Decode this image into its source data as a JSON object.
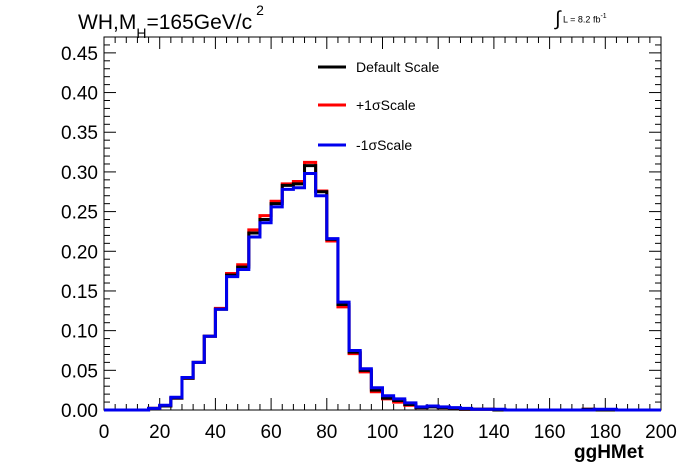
{
  "chart_data": {
    "type": "line",
    "title": {
      "main": "WH,M",
      "subscript": "H",
      "rest": "=165GeV/c",
      "superscript": "2"
    },
    "lumi": {
      "symbol": "∫",
      "text": "L = 8.2 fb",
      "superscript": "-1"
    },
    "xlabel": "ggHMet",
    "ylabel": "",
    "xlim": [
      0,
      200
    ],
    "ylim": [
      0,
      0.47
    ],
    "x_ticks": [
      "0",
      "20",
      "40",
      "60",
      "80",
      "100",
      "120",
      "140",
      "160",
      "180",
      "200"
    ],
    "y_ticks": [
      "0.00",
      "0.05",
      "0.10",
      "0.15",
      "0.20",
      "0.25",
      "0.30",
      "0.35",
      "0.40",
      "0.45"
    ],
    "bin_edges": [
      0,
      4,
      8,
      12,
      16,
      20,
      24,
      28,
      32,
      36,
      40,
      44,
      48,
      52,
      56,
      60,
      64,
      68,
      72,
      76,
      80,
      84,
      88,
      92,
      96,
      100,
      104,
      108,
      112,
      116,
      120,
      124,
      128,
      132,
      136,
      140,
      144,
      148,
      152,
      156,
      160,
      164,
      168,
      172,
      176,
      180,
      184,
      188,
      192,
      196,
      200
    ],
    "legend_placement": "top-center",
    "series": [
      {
        "name": "Default Scale",
        "color": "#000000",
        "values": [
          0,
          0,
          0,
          0,
          0.002,
          0.005,
          0.015,
          0.04,
          0.06,
          0.093,
          0.127,
          0.17,
          0.18,
          0.223,
          0.24,
          0.26,
          0.283,
          0.285,
          0.308,
          0.275,
          0.215,
          0.133,
          0.073,
          0.05,
          0.025,
          0.015,
          0.012,
          0.007,
          0.003,
          0.004,
          0.003,
          0.002,
          0.001,
          0.001,
          0.001,
          0,
          0,
          0,
          0,
          0,
          0,
          0,
          0,
          0.001,
          0,
          0,
          0,
          0,
          0,
          0
        ]
      },
      {
        "name": "+1σScale",
        "color": "#ff0000",
        "values": [
          0,
          0,
          0,
          0,
          0.002,
          0.005,
          0.015,
          0.04,
          0.06,
          0.093,
          0.128,
          0.172,
          0.183,
          0.227,
          0.245,
          0.263,
          0.285,
          0.288,
          0.312,
          0.276,
          0.213,
          0.13,
          0.071,
          0.048,
          0.023,
          0.014,
          0.01,
          0.006,
          0.003,
          0.005,
          0.003,
          0.002,
          0.001,
          0.001,
          0.001,
          0,
          0,
          0,
          0,
          0,
          0,
          0,
          0,
          0.001,
          0,
          0,
          0,
          0,
          0,
          0
        ]
      },
      {
        "name": "-1σScale",
        "color": "#0000ee",
        "values": [
          0,
          0,
          0,
          0,
          0.002,
          0.006,
          0.016,
          0.041,
          0.06,
          0.093,
          0.127,
          0.168,
          0.177,
          0.218,
          0.236,
          0.256,
          0.278,
          0.28,
          0.298,
          0.27,
          0.216,
          0.136,
          0.075,
          0.052,
          0.028,
          0.018,
          0.014,
          0.009,
          0.004,
          0.005,
          0.004,
          0.003,
          0.002,
          0.001,
          0.001,
          0.001,
          0,
          0,
          0,
          0,
          0,
          0,
          0,
          0,
          0.001,
          0.001,
          0,
          0,
          0,
          0
        ]
      }
    ],
    "grid": false
  }
}
